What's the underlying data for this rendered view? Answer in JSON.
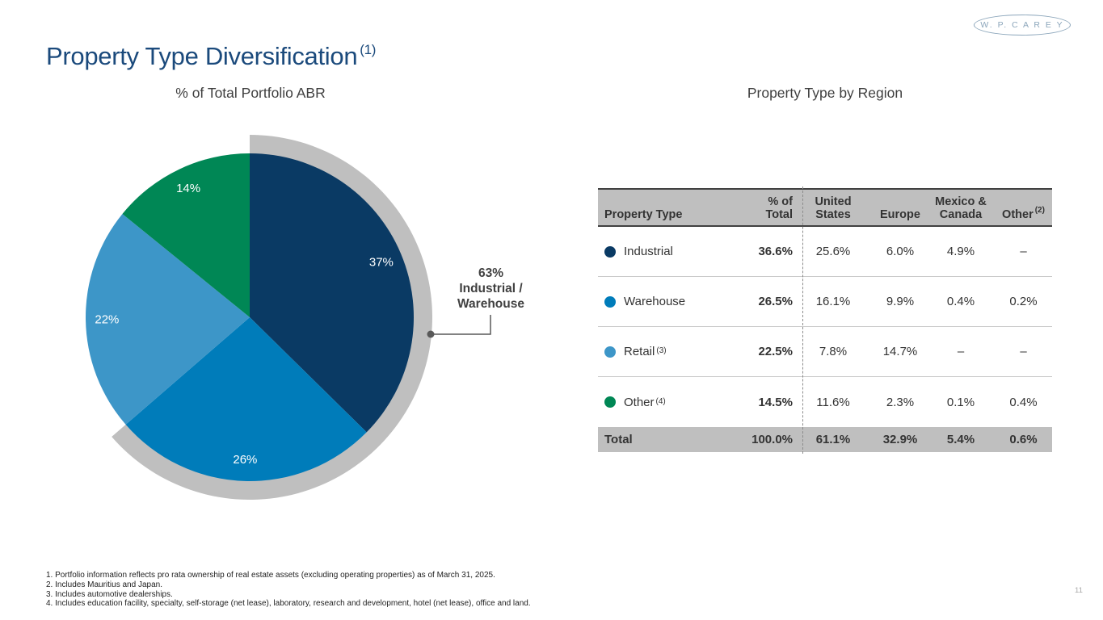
{
  "logo": {
    "text": "W. P. C A R E Y"
  },
  "title": {
    "text": "Property Type Diversification",
    "footnote_ref": "(1)"
  },
  "sections": {
    "left_subtitle": "% of Total Portfolio ABR",
    "right_subtitle": "Property Type by Region"
  },
  "chart_data": {
    "type": "pie",
    "title": "% of Total Portfolio ABR",
    "start_angle_deg": 0,
    "direction": "clockwise",
    "segments": [
      {
        "label": "Industrial",
        "display": "37%",
        "value": 37,
        "color": "#0a3a64"
      },
      {
        "label": "Warehouse",
        "display": "26%",
        "value": 26,
        "color": "#007cba"
      },
      {
        "label": "Retail",
        "display": "22%",
        "value": 22,
        "color": "#3d96c8"
      },
      {
        "label": "Other",
        "display": "14%",
        "value": 14,
        "color": "#008755"
      }
    ],
    "highlight_arc": {
      "value": 63,
      "color": "#bfbfbf",
      "label": "63% Industrial / Warehouse"
    }
  },
  "callout": {
    "line1": "63%",
    "line2": "Industrial /",
    "line3": "Warehouse"
  },
  "table": {
    "headers": {
      "property_type": "Property Type",
      "pct_total": "% of\nTotal",
      "us": "United\nStates",
      "europe": "Europe",
      "mexico_canada": "Mexico &\nCanada",
      "other": "Other",
      "other_sup": "(2)"
    },
    "rows": [
      {
        "dot_color": "#0a3a64",
        "label": "Industrial",
        "sup": "",
        "pct_total": "36.6%",
        "us": "25.6%",
        "europe": "6.0%",
        "mexico_canada": "4.9%",
        "other": "–"
      },
      {
        "dot_color": "#007cba",
        "label": "Warehouse",
        "sup": "",
        "pct_total": "26.5%",
        "us": "16.1%",
        "europe": "9.9%",
        "mexico_canada": "0.4%",
        "other": "0.2%"
      },
      {
        "dot_color": "#3d96c8",
        "label": "Retail",
        "sup": "(3)",
        "pct_total": "22.5%",
        "us": "7.8%",
        "europe": "14.7%",
        "mexico_canada": "–",
        "other": "–"
      },
      {
        "dot_color": "#008755",
        "label": "Other",
        "sup": "(4)",
        "pct_total": "14.5%",
        "us": "11.6%",
        "europe": "2.3%",
        "mexico_canada": "0.1%",
        "other": "0.4%"
      }
    ],
    "total": {
      "label": "Total",
      "pct_total": "100.0%",
      "us": "61.1%",
      "europe": "32.9%",
      "mexico_canada": "5.4%",
      "other": "0.6%"
    }
  },
  "footnotes": [
    "1. Portfolio information reflects pro rata ownership of real estate assets (excluding operating properties) as of March 31, 2025.",
    "2. Includes Mauritius and Japan.",
    "3. Includes automotive dealerships.",
    "4. Includes education facility, specialty, self-storage (net lease), laboratory, research and development, hotel (net lease), office and land."
  ],
  "page_number": "11"
}
